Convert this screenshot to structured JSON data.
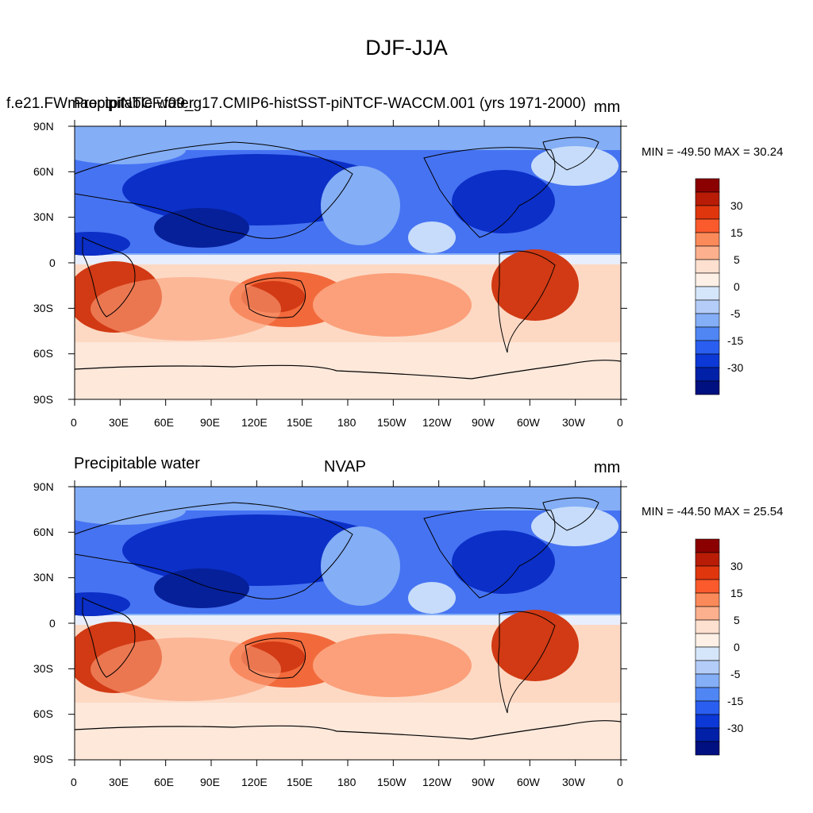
{
  "figure": {
    "title": "DJF-JJA"
  },
  "panels": [
    {
      "left_string": "Precipitable water",
      "center_string": "f.e21.FWmaoptpiNTCF.f09_g17.CMIP6-histSST-piNTCF-WACCM.001 (yrs 1971-2000)",
      "right_string": "mm",
      "min_max": "MIN = -49.50 MAX =  30.24"
    },
    {
      "left_string": "Precipitable water",
      "center_string": "NVAP",
      "right_string": "mm",
      "min_max": "MIN = -44.50 MAX =  25.54"
    }
  ],
  "axes": {
    "lat_labels": [
      "90N",
      "60N",
      "30N",
      "0",
      "30S",
      "60S",
      "90S"
    ],
    "lon_labels": [
      "0",
      "30E",
      "60E",
      "90E",
      "120E",
      "150E",
      "180",
      "150W",
      "120W",
      "90W",
      "60W",
      "30W",
      "0"
    ]
  },
  "colorbar": {
    "colors": [
      "#8b0000",
      "#b81c06",
      "#e0360e",
      "#fb5a2c",
      "#fb8a5a",
      "#fcb08d",
      "#fde0cf",
      "#fdf0e6",
      "#d6e6fa",
      "#b3cdf8",
      "#84aef6",
      "#4f86f4",
      "#2a5ef0",
      "#0b38d6",
      "#0020a8",
      "#001080"
    ],
    "tick_labels": [
      "30",
      "15",
      "5",
      "0",
      "-5",
      "-15",
      "-30"
    ]
  },
  "map_palette": {
    "ocean_default": "#fdd9c4",
    "strong_blue": "#0b2fc7",
    "mid_blue": "#3f6df2",
    "light_blue": "#84aef6",
    "pale_blue": "#c6dcfa",
    "strong_red": "#d13a14",
    "mid_red": "#f26a3c",
    "light_red": "#fba07a",
    "coast": "#000000"
  }
}
